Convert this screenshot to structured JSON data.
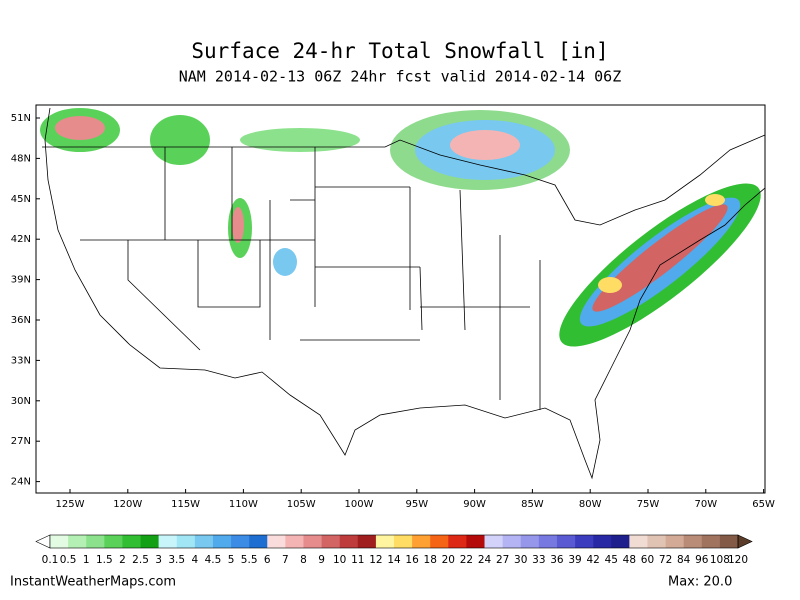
{
  "header": {
    "title": "Surface 24-hr Total Snowfall [in]",
    "subtitle": "NAM 2014-02-13 06Z 24hr fcst valid 2014-02-14 06Z"
  },
  "map": {
    "lat_labels": [
      "51N",
      "48N",
      "45N",
      "42N",
      "39N",
      "36N",
      "33N",
      "30N",
      "27N",
      "24N"
    ],
    "lon_labels": [
      "125W",
      "120W",
      "115W",
      "110W",
      "105W",
      "100W",
      "95W",
      "90W",
      "85W",
      "80W",
      "75W",
      "70W",
      "65W"
    ]
  },
  "colorbar": {
    "labels": [
      "0.1",
      "0.5",
      "1",
      "1.5",
      "2",
      "2.5",
      "3",
      "3.5",
      "4",
      "4.5",
      "5",
      "5.5",
      "6",
      "7",
      "8",
      "9",
      "10",
      "11",
      "12",
      "14",
      "16",
      "18",
      "20",
      "22",
      "24",
      "27",
      "30",
      "33",
      "36",
      "39",
      "42",
      "45",
      "48",
      "60",
      "72",
      "84",
      "96",
      "108",
      "120"
    ],
    "colors": [
      "#e2fbe2",
      "#b4f0b4",
      "#8ce28c",
      "#5ad25a",
      "#32be32",
      "#14a014",
      "#c8f5fa",
      "#a0e6f5",
      "#78c8f0",
      "#50aaeb",
      "#3c8ce6",
      "#1e6ed2",
      "#fadcdc",
      "#f5b4b4",
      "#e68c8c",
      "#d26464",
      "#be3c3c",
      "#a01e1e",
      "#fff5a0",
      "#ffdc64",
      "#ffa032",
      "#f56414",
      "#dc2814",
      "#b40a0a",
      "#d2d2fa",
      "#b4b4f5",
      "#9696eb",
      "#7878e1",
      "#5a5ad2",
      "#3c3cbe",
      "#2828a5",
      "#1e1e8c",
      "#f0dcd2",
      "#e1c3b4",
      "#d2aa96",
      "#b98c78",
      "#a0735f",
      "#825a46"
    ],
    "under_color": "#ffffff",
    "over_color": "#5a3c28"
  },
  "footer": {
    "site": "InstantWeatherMaps.com",
    "max": "Max:  20.0"
  }
}
